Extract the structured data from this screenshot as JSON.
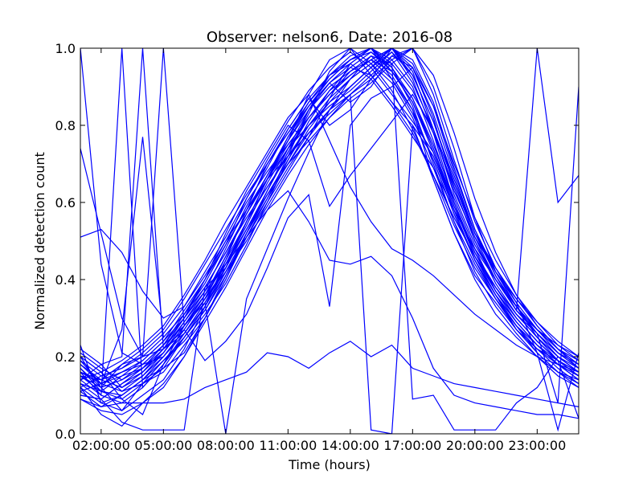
{
  "chart_data": {
    "type": "line",
    "title": "Observer: nelson6, Date: 2016-08",
    "xlabel": "Time (hours)",
    "ylabel": "Normalized detection count",
    "xlim": [
      1,
      25
    ],
    "ylim": [
      0,
      1
    ],
    "x_ticks": [
      {
        "value": 2,
        "label": "02:00:00"
      },
      {
        "value": 5,
        "label": "05:00:00"
      },
      {
        "value": 8,
        "label": "08:00:00"
      },
      {
        "value": 11,
        "label": "11:00:00"
      },
      {
        "value": 14,
        "label": "14:00:00"
      },
      {
        "value": 17,
        "label": "17:00:00"
      },
      {
        "value": 20,
        "label": "20:00:00"
      },
      {
        "value": 23,
        "label": "23:00:00"
      }
    ],
    "y_ticks": [
      {
        "value": 0.0,
        "label": "0.0"
      },
      {
        "value": 0.2,
        "label": "0.2"
      },
      {
        "value": 0.4,
        "label": "0.4"
      },
      {
        "value": 0.6,
        "label": "0.6"
      },
      {
        "value": 0.8,
        "label": "0.8"
      },
      {
        "value": 1.0,
        "label": "1.0"
      }
    ],
    "x": [
      1,
      2,
      3,
      4,
      5,
      6,
      7,
      8,
      9,
      10,
      11,
      12,
      13,
      14,
      15,
      16,
      17,
      18,
      19,
      20,
      21,
      22,
      23,
      24,
      25
    ],
    "line_color": "#0000ff",
    "grid": false,
    "legend": "none",
    "series": [
      {
        "values": [
          0.12,
          0.08,
          0.06,
          0.1,
          0.14,
          0.22,
          0.33,
          0.45,
          0.58,
          0.7,
          0.78,
          0.86,
          0.92,
          0.97,
          1.0,
          0.95,
          0.85,
          0.7,
          0.55,
          0.42,
          0.33,
          0.26,
          0.2,
          0.15,
          0.12
        ]
      },
      {
        "values": [
          0.15,
          0.12,
          0.14,
          0.18,
          0.23,
          0.3,
          0.38,
          0.47,
          0.56,
          0.64,
          0.72,
          0.8,
          0.86,
          0.9,
          0.95,
          1.0,
          0.92,
          0.78,
          0.6,
          0.47,
          0.38,
          0.3,
          0.24,
          0.19,
          0.16
        ]
      },
      {
        "values": [
          0.1,
          0.09,
          0.13,
          0.16,
          0.21,
          0.28,
          0.36,
          0.44,
          0.55,
          0.66,
          0.76,
          0.88,
          0.97,
          1.0,
          0.93,
          0.86,
          0.8,
          0.72,
          0.58,
          0.45,
          0.36,
          0.28,
          0.22,
          0.17,
          0.13
        ]
      },
      {
        "values": [
          0.2,
          0.16,
          0.11,
          0.13,
          0.17,
          0.25,
          0.32,
          0.42,
          0.52,
          0.62,
          0.7,
          0.78,
          0.84,
          0.88,
          0.92,
          0.97,
          1.0,
          0.9,
          0.74,
          0.56,
          0.42,
          0.33,
          0.25,
          0.19,
          0.15
        ]
      },
      {
        "values": [
          0.18,
          0.14,
          0.16,
          0.19,
          0.24,
          0.32,
          0.4,
          0.5,
          0.6,
          0.68,
          0.75,
          0.82,
          0.88,
          0.94,
          0.98,
          0.93,
          0.84,
          0.66,
          0.52,
          0.4,
          0.31,
          0.25,
          0.2,
          0.16,
          0.14
        ]
      },
      {
        "values": [
          0.22,
          0.18,
          0.12,
          0.15,
          0.2,
          0.27,
          0.35,
          0.46,
          0.57,
          0.67,
          0.77,
          0.85,
          0.91,
          0.86,
          0.9,
          0.98,
          0.95,
          0.82,
          0.64,
          0.5,
          0.39,
          0.31,
          0.25,
          0.2,
          0.17
        ]
      },
      {
        "values": [
          0.14,
          0.1,
          0.08,
          0.12,
          0.18,
          0.26,
          0.34,
          0.43,
          0.53,
          0.63,
          0.73,
          0.83,
          0.94,
          1.0,
          0.96,
          0.89,
          0.79,
          0.67,
          0.54,
          0.43,
          0.35,
          0.28,
          0.21,
          0.16,
          0.12
        ]
      },
      {
        "values": [
          0.16,
          0.13,
          0.15,
          0.17,
          0.22,
          0.29,
          0.37,
          0.48,
          0.59,
          0.69,
          0.79,
          0.87,
          0.8,
          0.84,
          0.92,
          1.0,
          0.97,
          0.86,
          0.69,
          0.53,
          0.41,
          0.32,
          0.26,
          0.21,
          0.18
        ]
      },
      {
        "values": [
          0.11,
          0.07,
          0.1,
          0.14,
          0.19,
          0.24,
          0.31,
          0.39,
          0.49,
          0.6,
          0.71,
          0.81,
          0.89,
          0.95,
          0.99,
          0.94,
          0.87,
          0.75,
          0.61,
          0.48,
          0.37,
          0.29,
          0.23,
          0.18,
          0.14
        ]
      },
      {
        "values": [
          0.19,
          0.15,
          0.17,
          0.21,
          0.26,
          0.33,
          0.41,
          0.5,
          0.58,
          0.66,
          0.74,
          0.8,
          0.85,
          0.89,
          0.94,
          0.99,
          0.91,
          0.79,
          0.62,
          0.49,
          0.4,
          0.32,
          0.27,
          0.22,
          0.19
        ]
      },
      {
        "values": [
          0.13,
          0.11,
          0.09,
          0.13,
          0.16,
          0.23,
          0.3,
          0.4,
          0.51,
          0.61,
          0.72,
          0.84,
          0.93,
          0.98,
          1.0,
          0.97,
          0.9,
          0.76,
          0.6,
          0.46,
          0.36,
          0.27,
          0.21,
          0.16,
          0.13
        ]
      },
      {
        "values": [
          0.17,
          0.12,
          0.18,
          0.2,
          0.25,
          0.31,
          0.39,
          0.49,
          0.61,
          0.71,
          0.8,
          0.76,
          0.82,
          0.88,
          0.93,
          0.98,
          1.0,
          0.88,
          0.71,
          0.55,
          0.43,
          0.34,
          0.27,
          0.21,
          0.17
        ]
      },
      {
        "values": [
          0.21,
          0.17,
          0.14,
          0.17,
          0.21,
          0.28,
          0.35,
          0.42,
          0.5,
          0.59,
          0.68,
          0.77,
          0.87,
          0.96,
          1.0,
          0.92,
          0.83,
          0.71,
          0.57,
          0.45,
          0.36,
          0.29,
          0.23,
          0.19,
          0.16
        ]
      },
      {
        "values": [
          0.09,
          0.06,
          0.05,
          0.08,
          0.13,
          0.2,
          0.29,
          0.38,
          0.48,
          0.58,
          0.67,
          0.75,
          0.82,
          0.87,
          0.91,
          0.96,
          1.0,
          0.93,
          0.78,
          0.61,
          0.47,
          0.36,
          0.28,
          0.22,
          0.18
        ]
      },
      {
        "values": [
          0.15,
          0.14,
          0.12,
          0.16,
          0.22,
          0.3,
          0.4,
          0.52,
          0.63,
          0.72,
          0.81,
          0.89,
          0.95,
          0.99,
          0.95,
          0.88,
          0.81,
          0.73,
          0.59,
          0.47,
          0.38,
          0.31,
          0.25,
          0.2,
          0.16
        ]
      },
      {
        "values": [
          0.74,
          0.52,
          0.3,
          0.2,
          0.22,
          0.27,
          0.35,
          0.45,
          0.55,
          0.64,
          0.72,
          0.78,
          0.84,
          0.9,
          0.95,
          1.0,
          0.94,
          0.79,
          0.63,
          0.51,
          0.42,
          0.35,
          0.28,
          0.22,
          0.17
        ]
      },
      {
        "values": [
          0.51,
          0.53,
          0.47,
          0.37,
          0.3,
          0.33,
          0.42,
          0.51,
          0.61,
          0.7,
          0.79,
          0.87,
          0.93,
          0.96,
          0.92,
          0.85,
          0.77,
          0.69,
          0.58,
          0.48,
          0.4,
          0.33,
          0.27,
          0.23,
          0.2
        ]
      },
      {
        "values": [
          1.0,
          0.44,
          0.21,
          0.18,
          0.2,
          0.26,
          0.34,
          0.44,
          0.54,
          0.65,
          0.74,
          0.82,
          0.88,
          0.93,
          0.97,
          1.0,
          0.96,
          0.85,
          0.7,
          0.56,
          0.45,
          0.36,
          0.29,
          0.23,
          0.19
        ]
      },
      {
        "values": [
          0.16,
          0.1,
          1.0,
          0.12,
          0.18,
          0.25,
          0.32,
          0.41,
          0.51,
          0.6,
          0.69,
          0.77,
          0.84,
          0.9,
          0.95,
          0.99,
          0.93,
          0.81,
          0.65,
          0.51,
          0.4,
          0.32,
          0.26,
          0.2,
          0.16
        ]
      },
      {
        "values": [
          0.14,
          0.18,
          0.2,
          1.0,
          0.22,
          0.26,
          0.33,
          0.43,
          0.53,
          0.62,
          0.71,
          0.8,
          0.87,
          0.92,
          0.96,
          0.91,
          0.82,
          0.69,
          0.55,
          0.44,
          0.35,
          0.28,
          0.23,
          0.18,
          0.15
        ]
      },
      {
        "values": [
          0.12,
          0.15,
          0.17,
          0.2,
          1.0,
          0.28,
          0.36,
          0.46,
          0.57,
          0.67,
          0.76,
          0.84,
          0.9,
          0.94,
          0.97,
          1.0,
          0.95,
          0.83,
          0.67,
          0.52,
          0.41,
          0.33,
          0.27,
          0.22,
          0.18
        ]
      },
      {
        "values": [
          0.18,
          0.13,
          0.27,
          0.77,
          0.25,
          0.31,
          0.38,
          0.47,
          0.57,
          0.66,
          0.75,
          0.82,
          0.88,
          0.93,
          0.97,
          0.94,
          0.86,
          0.74,
          0.6,
          0.47,
          0.37,
          0.3,
          0.24,
          0.19,
          0.15
        ]
      },
      {
        "values": [
          0.23,
          0.08,
          0.1,
          0.14,
          0.17,
          0.21,
          0.3,
          0.4,
          0.52,
          0.63,
          0.74,
          0.84,
          0.91,
          0.96,
          1.0,
          0.96,
          0.89,
          0.78,
          0.64,
          0.5,
          0.4,
          0.32,
          1.0,
          0.6,
          0.67
        ]
      },
      {
        "values": [
          0.16,
          0.14,
          0.18,
          0.22,
          0.27,
          0.35,
          0.44,
          0.53,
          0.62,
          0.7,
          0.78,
          0.85,
          0.91,
          0.95,
          0.93,
          0.86,
          0.78,
          0.67,
          0.56,
          0.46,
          0.38,
          0.31,
          0.26,
          0.08,
          0.9
        ]
      },
      {
        "values": [
          0.2,
          0.12,
          0.06,
          0.13,
          0.19,
          0.25,
          0.33,
          0.42,
          0.52,
          0.61,
          0.7,
          0.79,
          0.86,
          0.92,
          0.96,
          1.0,
          0.93,
          0.81,
          0.66,
          0.52,
          0.42,
          0.34,
          0.21,
          0.01,
          0.21
        ]
      },
      {
        "values": [
          0.1,
          0.09,
          0.13,
          0.17,
          0.23,
          0.31,
          0.4,
          0.49,
          0.58,
          0.67,
          0.76,
          0.85,
          0.92,
          0.97,
          1.0,
          0.94,
          0.86,
          0.73,
          0.58,
          0.45,
          0.35,
          0.27,
          0.22,
          0.19,
          0.04
        ]
      },
      {
        "values": [
          0.12,
          0.05,
          0.02,
          0.08,
          0.12,
          0.2,
          0.3,
          0.41,
          0.52,
          0.63,
          0.73,
          0.82,
          0.89,
          0.93,
          0.97,
          0.92,
          0.84,
          0.71,
          0.57,
          0.45,
          0.36,
          0.29,
          0.23,
          0.18,
          0.15
        ]
      },
      {
        "values": [
          0.2,
          0.16,
          0.09,
          0.05,
          0.18,
          0.28,
          0.35,
          0.43,
          0.55,
          0.66,
          0.77,
          0.86,
          0.93,
          0.97,
          0.99,
          0.95,
          0.87,
          0.74,
          0.59,
          0.46,
          0.37,
          0.3,
          0.24,
          0.19,
          0.15
        ]
      },
      {
        "values": [
          0.15,
          0.11,
          0.15,
          0.19,
          0.24,
          0.3,
          0.37,
          0.44,
          0.51,
          0.58,
          0.63,
          0.55,
          0.45,
          0.44,
          0.46,
          0.41,
          0.3,
          0.17,
          0.1,
          0.08,
          0.07,
          0.06,
          0.05,
          0.05,
          0.04
        ]
      },
      {
        "values": [
          0.09,
          0.07,
          0.08,
          0.08,
          0.08,
          0.09,
          0.12,
          0.14,
          0.16,
          0.21,
          0.2,
          0.17,
          0.21,
          0.24,
          0.2,
          0.23,
          0.17,
          0.15,
          0.13,
          0.12,
          0.11,
          0.1,
          0.09,
          0.08,
          0.07
        ]
      },
      {
        "values": [
          0.13,
          0.09,
          0.03,
          0.01,
          0.01,
          0.01,
          0.38,
          0.43,
          0.55,
          0.66,
          0.72,
          0.78,
          0.83,
          0.88,
          0.01,
          0.0,
          0.8,
          0.66,
          0.52,
          0.41,
          0.34,
          0.27,
          0.22,
          0.18,
          0.14
        ]
      },
      {
        "values": [
          0.17,
          0.11,
          0.1,
          0.14,
          0.2,
          0.27,
          0.19,
          0.24,
          0.31,
          0.43,
          0.56,
          0.62,
          0.33,
          0.8,
          0.87,
          0.9,
          0.95,
          0.85,
          0.68,
          0.53,
          0.42,
          0.33,
          0.26,
          0.21,
          0.17
        ]
      },
      {
        "values": [
          0.11,
          0.13,
          0.16,
          0.18,
          0.23,
          0.28,
          0.34,
          0.0,
          0.35,
          0.48,
          0.61,
          0.73,
          0.84,
          0.92,
          0.98,
          0.96,
          0.09,
          0.1,
          0.01,
          0.01,
          0.01,
          0.08,
          0.12,
          0.2,
          0.16
        ]
      },
      {
        "values": [
          0.19,
          0.13,
          0.11,
          0.15,
          0.21,
          0.29,
          0.36,
          0.44,
          0.53,
          0.62,
          0.7,
          0.76,
          0.59,
          0.67,
          0.74,
          0.81,
          0.88,
          0.79,
          0.65,
          0.52,
          0.43,
          0.35,
          0.29,
          0.24,
          0.2
        ]
      },
      {
        "values": [
          0.14,
          0.16,
          0.19,
          0.23,
          0.28,
          0.36,
          0.45,
          0.55,
          0.64,
          0.73,
          0.82,
          0.88,
          0.76,
          0.64,
          0.55,
          0.48,
          0.45,
          0.41,
          0.36,
          0.31,
          0.27,
          0.23,
          0.2,
          0.18,
          0.16
        ]
      }
    ]
  }
}
